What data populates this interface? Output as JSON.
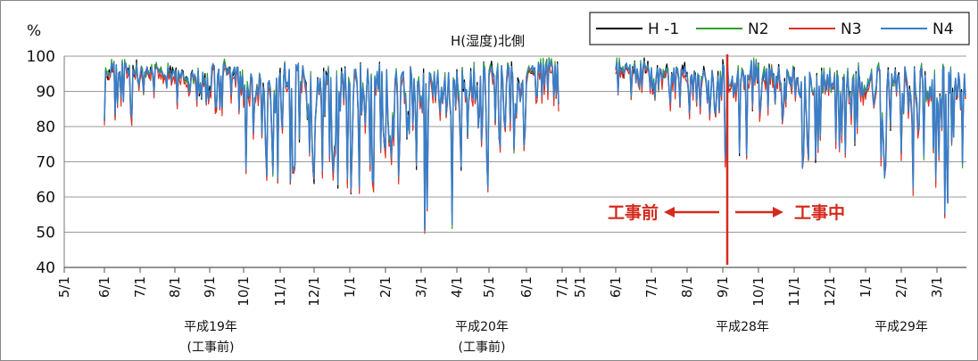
{
  "chart_data": {
    "type": "line",
    "title": "H(湿度)北側",
    "ylabel": "%",
    "ylim": [
      40,
      100
    ],
    "yticks": [
      40,
      50,
      60,
      70,
      80,
      90,
      100
    ],
    "grid": true,
    "legend_position": "top-right",
    "segments": [
      {
        "x_ticks": [
          "5/1",
          "6/1",
          "7/1",
          "8/1",
          "9/1",
          "10/1",
          "11/1",
          "12/1",
          "1/1",
          "2/1",
          "3/1",
          "4/1",
          "5/1",
          "6/1",
          "7/1"
        ],
        "year_labels": [
          {
            "text": "平成19年",
            "sub": "(工事前)"
          },
          {
            "text": "平成20年",
            "sub": "(工事前)"
          }
        ]
      },
      {
        "x_ticks": [
          "5/1",
          "6/1",
          "7/1",
          "8/1",
          "9/1",
          "10/1",
          "11/1",
          "12/1",
          "1/1",
          "2/1",
          "3/1"
        ],
        "year_labels": [
          {
            "text": "平成28年",
            "sub": ""
          },
          {
            "text": "平成29年",
            "sub": ""
          }
        ]
      }
    ],
    "series": [
      {
        "name": "H -1",
        "color": "#000000"
      },
      {
        "name": "N2",
        "color": "#2ca02c"
      },
      {
        "name": "N3",
        "color": "#e03020"
      },
      {
        "name": "N4",
        "color": "#3a7ec8"
      }
    ],
    "monthly_profile": {
      "segment1": {
        "months": [
          "6",
          "7",
          "8",
          "9",
          "10",
          "11",
          "12",
          "1",
          "2",
          "3",
          "4",
          "5",
          "6"
        ],
        "high": [
          99,
          97,
          96,
          98,
          95,
          98,
          97,
          98,
          97,
          96,
          97,
          98,
          99
        ],
        "low": [
          78,
          85,
          85,
          83,
          62,
          60,
          57,
          58,
          55,
          43,
          58,
          70,
          85
        ]
      },
      "segment2": {
        "months": [
          "6",
          "7",
          "8",
          "9",
          "10",
          "11",
          "12",
          "1",
          "2",
          "3"
        ],
        "high": [
          99,
          97,
          96,
          99,
          97,
          96,
          97,
          97,
          97,
          97
        ],
        "low": [
          86,
          85,
          82,
          68,
          78,
          65,
          62,
          62,
          57,
          50
        ]
      }
    },
    "annotations": {
      "divider_date": "9/1",
      "before_label": "工事前",
      "after_label": "工事中"
    }
  }
}
